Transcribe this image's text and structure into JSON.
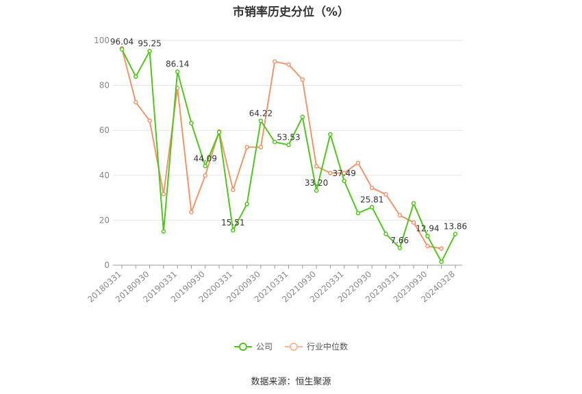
{
  "chart_data": {
    "type": "line",
    "title": "市销率历史分位（%）",
    "source": "数据来源：恒生聚源",
    "ylim": [
      0,
      100
    ],
    "yticks": [
      0,
      20,
      40,
      60,
      80,
      100
    ],
    "grid": true,
    "legend_position": "bottom",
    "x": [
      "20180331",
      "20180630",
      "20180930",
      "20181231",
      "20190331",
      "20190630",
      "20190930",
      "20191231",
      "20200331",
      "20200630",
      "20200930",
      "20201231",
      "20210331",
      "20210630",
      "20210930",
      "20211231",
      "20220331",
      "20220630",
      "20220930",
      "20221231",
      "20230331",
      "20230630",
      "20230930",
      "20231231",
      "20240328"
    ],
    "xtick_labels": [
      "20180331",
      "20180930",
      "20190331",
      "20190930",
      "20200331",
      "20200930",
      "20210331",
      "20210930",
      "20220331",
      "20220930",
      "20230331",
      "20230930",
      "20240328"
    ],
    "series": [
      {
        "name": "公司",
        "color": "#52c41a",
        "values": [
          96.04,
          83.9,
          95.25,
          15.0,
          86.14,
          63.2,
          44.09,
          59.2,
          15.51,
          27.2,
          64.22,
          54.8,
          53.53,
          66.0,
          33.2,
          58.2,
          37.49,
          23.2,
          25.81,
          13.9,
          7.66,
          27.5,
          12.94,
          1.5,
          13.86
        ],
        "labels": {
          "0": "96.04",
          "2": "95.25",
          "4": "86.14",
          "6": "44.09",
          "8": "15.51",
          "10": "64.22",
          "12": "53.53",
          "14": "33.20",
          "16": "37.49",
          "18": "25.81",
          "20": "7.66",
          "22": "12.94",
          "24": "13.86"
        }
      },
      {
        "name": "行业中位数",
        "color": "#f0956a",
        "values": [
          96.5,
          72.5,
          64.3,
          31.6,
          78.8,
          23.6,
          39.9,
          59.5,
          33.5,
          52.5,
          52.5,
          90.6,
          89.3,
          82.6,
          44.0,
          41.0,
          41.0,
          45.5,
          34.4,
          31.5,
          22.2,
          19.0,
          8.5,
          7.4,
          null
        ]
      }
    ]
  }
}
